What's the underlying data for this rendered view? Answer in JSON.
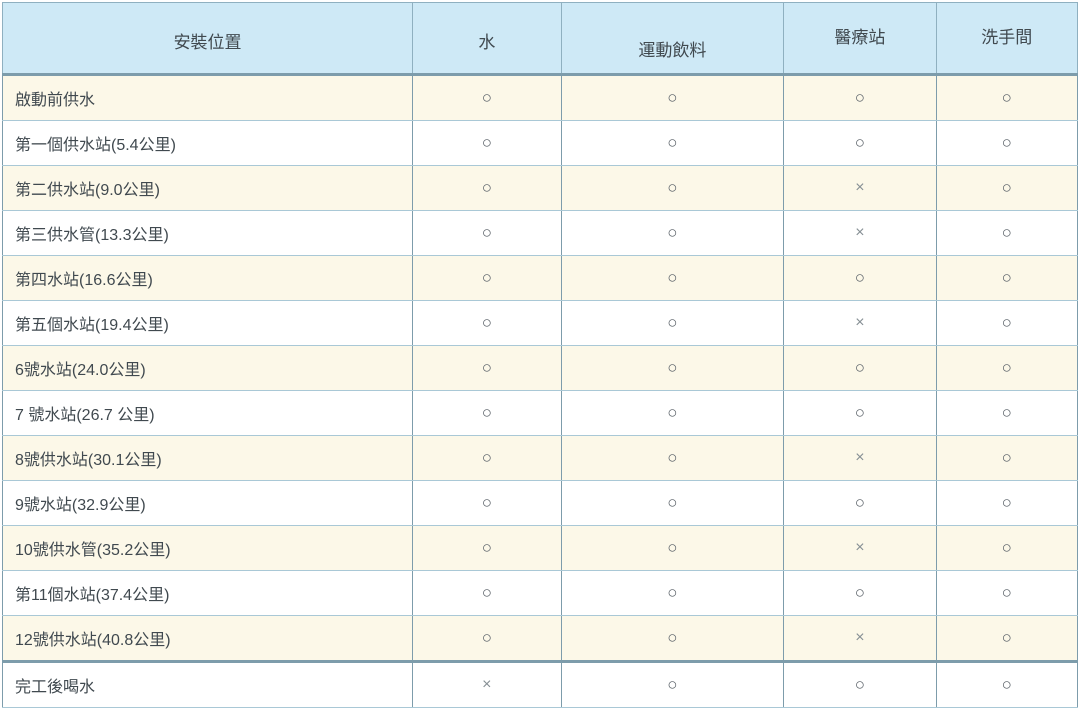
{
  "chart_data": {
    "type": "table",
    "columns": [
      "安裝位置",
      "水",
      "運動飲料",
      "醫療站",
      "洗手間"
    ],
    "legend": {
      "available": "○",
      "unavailable": "×"
    },
    "rows": [
      {
        "location": "啟動前供水",
        "cells": [
          "○",
          "○",
          "○",
          "○"
        ]
      },
      {
        "location": "第一個供水站(5.4公里)",
        "cells": [
          "○",
          "○",
          "○",
          "○"
        ]
      },
      {
        "location": "第二供水站(9.0公里)",
        "cells": [
          "○",
          "○",
          "×",
          "○"
        ]
      },
      {
        "location": "第三供水管(13.3公里)",
        "cells": [
          "○",
          "○",
          "×",
          "○"
        ]
      },
      {
        "location": "第四水站(16.6公里)",
        "cells": [
          "○",
          "○",
          "○",
          "○"
        ]
      },
      {
        "location": "第五個水站(19.4公里)",
        "cells": [
          "○",
          "○",
          "×",
          "○"
        ]
      },
      {
        "location": "6號水站(24.0公里)",
        "cells": [
          "○",
          "○",
          "○",
          "○"
        ]
      },
      {
        "location": "7 號水站(26.7 公里)",
        "cells": [
          "○",
          "○",
          "○",
          "○"
        ]
      },
      {
        "location": "8號供水站(30.1公里)",
        "cells": [
          "○",
          "○",
          "×",
          "○"
        ]
      },
      {
        "location": "9號水站(32.9公里)",
        "cells": [
          "○",
          "○",
          "○",
          "○"
        ]
      },
      {
        "location": "10號供水管(35.2公里)",
        "cells": [
          "○",
          "○",
          "×",
          "○"
        ]
      },
      {
        "location": "第11個水站(37.4公里)",
        "cells": [
          "○",
          "○",
          "○",
          "○"
        ]
      },
      {
        "location": "12號供水站(40.8公里)",
        "cells": [
          "○",
          "○",
          "×",
          "○"
        ]
      },
      {
        "location": "完工後喝水",
        "cells": [
          "×",
          "○",
          "○",
          "○"
        ]
      }
    ]
  },
  "colors": {
    "header_bg": "#cee9f6",
    "row_stripe_bg": "#fcf8e8",
    "row_plain_bg": "#ffffff",
    "grid_horizontal": "#a9c8d6",
    "grid_vertical": "#7d9cab",
    "outer_border": "#93abb8",
    "text": "#40494f",
    "circle_mark": "#5a6168",
    "cross_mark": "#868f94"
  }
}
